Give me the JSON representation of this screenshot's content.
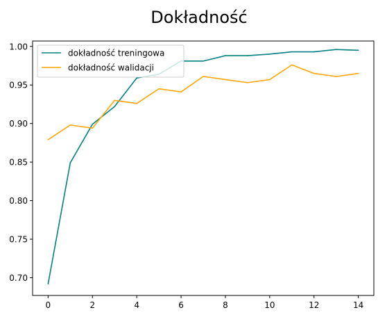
{
  "chart_data": {
    "type": "line",
    "title": "Dokładność",
    "xlabel": "",
    "ylabel": "",
    "x": [
      0,
      1,
      2,
      3,
      4,
      5,
      6,
      7,
      8,
      9,
      10,
      11,
      12,
      13,
      14
    ],
    "series": [
      {
        "name": "dokładność treningowa",
        "color": "#008080",
        "values": [
          0.692,
          0.849,
          0.899,
          0.922,
          0.959,
          0.964,
          0.981,
          0.981,
          0.988,
          0.988,
          0.99,
          0.993,
          0.993,
          0.996,
          0.995
        ]
      },
      {
        "name": "dokładność walidacji",
        "color": "#FFA500",
        "values": [
          0.879,
          0.898,
          0.894,
          0.93,
          0.926,
          0.945,
          0.941,
          0.961,
          0.957,
          0.953,
          0.957,
          0.976,
          0.965,
          0.961,
          0.965
        ]
      }
    ],
    "xlim": [
      -0.7,
      14.7
    ],
    "ylim": [
      0.677,
      1.007
    ],
    "xticks": [
      "0",
      "2",
      "4",
      "6",
      "8",
      "10",
      "12",
      "14"
    ],
    "yticks": [
      "0.70",
      "0.75",
      "0.80",
      "0.85",
      "0.90",
      "0.95",
      "1.00"
    ],
    "legend_position": "upper-left",
    "grid": false
  }
}
